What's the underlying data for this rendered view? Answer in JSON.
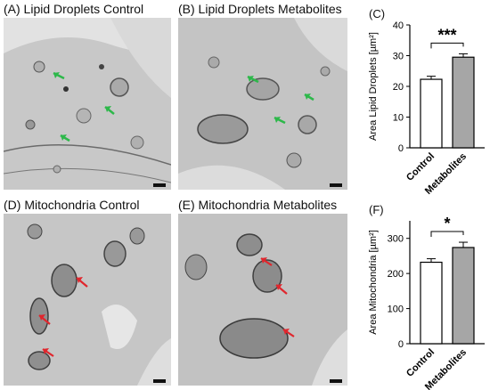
{
  "panels": {
    "a": "(A) Lipid Droplets Control",
    "b": "(B) Lipid Droplets Metabolites",
    "c": "(C)",
    "d": "(D) Mitochondria Control",
    "e": "(E) Mitochondria Metabolites",
    "f": "(F)"
  },
  "arrow_colors": {
    "lipid": "#2db84a",
    "mito": "#e0262d"
  },
  "chart_data": [
    {
      "type": "bar",
      "panel": "(C)",
      "categories": [
        "Control",
        "Metabolites"
      ],
      "values": [
        22.3,
        29.5
      ],
      "errors": [
        1.0,
        1.1
      ],
      "colors": [
        "#ffffff",
        "#a6a6a6"
      ],
      "ylabel": "Area Lipid Droplets [µm²]",
      "ylim": [
        0,
        40
      ],
      "yticks": [
        0,
        10,
        20,
        30,
        40
      ],
      "significance": "***"
    },
    {
      "type": "bar",
      "panel": "(F)",
      "categories": [
        "Control",
        "Metabolites"
      ],
      "values": [
        232,
        274
      ],
      "errors": [
        10,
        15
      ],
      "colors": [
        "#ffffff",
        "#a6a6a6"
      ],
      "ylabel": "Area Mitochondria [µm²]",
      "ylim": [
        0,
        350
      ],
      "yticks": [
        0,
        100,
        200,
        300
      ],
      "significance": "*"
    }
  ]
}
